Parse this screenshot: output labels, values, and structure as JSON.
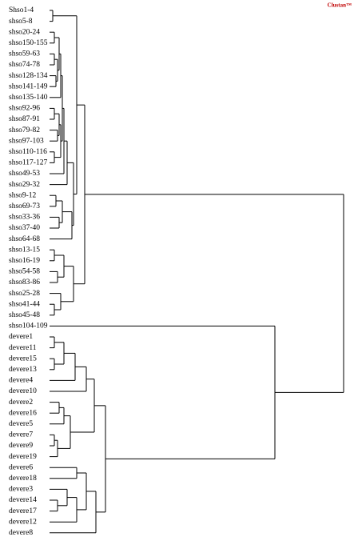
{
  "header": {
    "title": "Clustan™"
  },
  "leaves": [
    "Shso1-4",
    "shso5-8",
    "shso20-24",
    "shso150-155",
    "shso59-63",
    "shso74-78",
    "shso128-134",
    "shso141-149",
    "shso135-140",
    "shso92-96",
    "shso87-91",
    "shso79-82",
    "shso97-103",
    "shso110-116",
    "shso117-127",
    "shso49-53",
    "shso29-32",
    "shso9-12",
    "shso69-73",
    "shso33-36",
    "shso37-40",
    "shso64-68",
    "shso13-15",
    "shso16-19",
    "shso54-58",
    "shso83-86",
    "shso25-28",
    "shso41-44",
    "shso45-48",
    "shso104-109",
    "devere1",
    "devere11",
    "devere15",
    "devere13",
    "devere4",
    "devere10",
    "devere2",
    "devere16",
    "devere5",
    "devere7",
    "devere9",
    "devere19",
    "devere6",
    "devere18",
    "devere3",
    "devere14",
    "devere17",
    "devere12",
    "devere8"
  ]
}
